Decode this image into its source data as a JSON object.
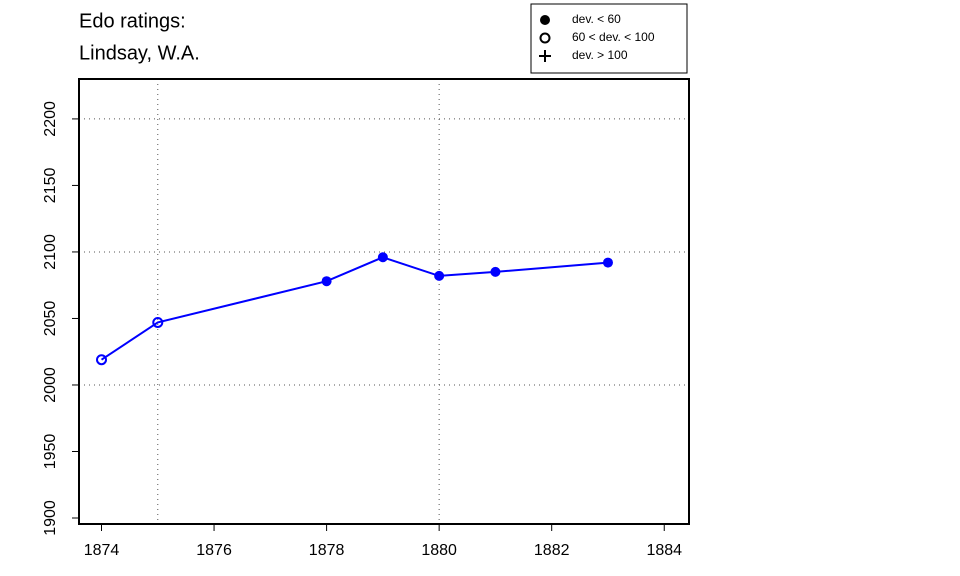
{
  "chart_data": {
    "type": "line",
    "title": [
      "Edo ratings:",
      "Lindsay, W.A."
    ],
    "x": [
      1874,
      1875,
      1878,
      1879,
      1880,
      1881,
      1883
    ],
    "series": [
      {
        "color": "#0000ff",
        "values": [
          2019,
          2047,
          2078,
          2096,
          2082,
          2085,
          2092
        ],
        "point_style": [
          1,
          1,
          0,
          0,
          0,
          0,
          0
        ]
      }
    ],
    "legend": {
      "position": "top-right",
      "entries": [
        {
          "label": "dev. < 60",
          "symbol": "filled-circle"
        },
        {
          "label": "60 < dev. < 100",
          "symbol": "open-circle"
        },
        {
          "label": "dev. > 100",
          "symbol": "plus"
        }
      ]
    },
    "xlim": [
      1873.6,
      1884.44
    ],
    "ylim": [
      1895.5,
      2230
    ],
    "xticks": [
      1874,
      1876,
      1878,
      1880,
      1882,
      1884
    ],
    "yticks": [
      1900,
      1950,
      2000,
      2050,
      2100,
      2150,
      2200
    ],
    "grid_x": [
      1875,
      1880
    ],
    "grid_y": [
      2000,
      2100,
      2200
    ]
  }
}
